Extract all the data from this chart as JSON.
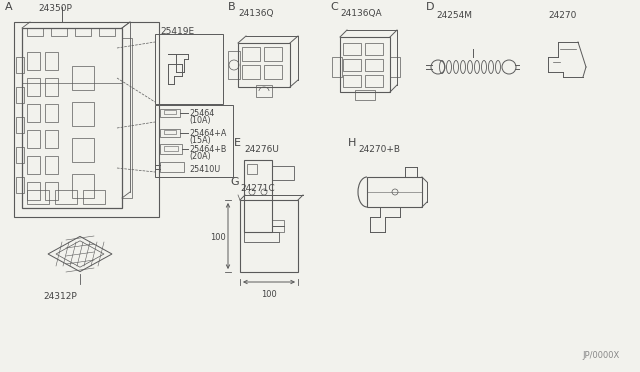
{
  "bg_color": "#f2f2ed",
  "line_color": "#5a5a5a",
  "watermark": "JP/0000X",
  "label_A": "A",
  "part_24350P": "24350P",
  "part_25419E": "25419E",
  "part_25464": "25464",
  "part_25464_sub": "(10A)",
  "part_25464A": "25464+A",
  "part_25464A_sub": "(15A)",
  "part_25464B": "25464+B",
  "part_25464B_sub": "(20A)",
  "part_25410U": "25410U",
  "part_24312P": "24312P",
  "label_B": "B",
  "part_24136Q": "24136Q",
  "label_C": "C",
  "part_24136QA": "24136QA",
  "label_D": "D",
  "part_24254M": "24254M",
  "part_24270": "24270",
  "label_E": "E",
  "part_24276U": "24276U",
  "label_G": "G",
  "part_24271C": "24271C",
  "dim_100a": "100",
  "dim_100b": "100",
  "label_H": "H",
  "part_24270B": "24270+B"
}
